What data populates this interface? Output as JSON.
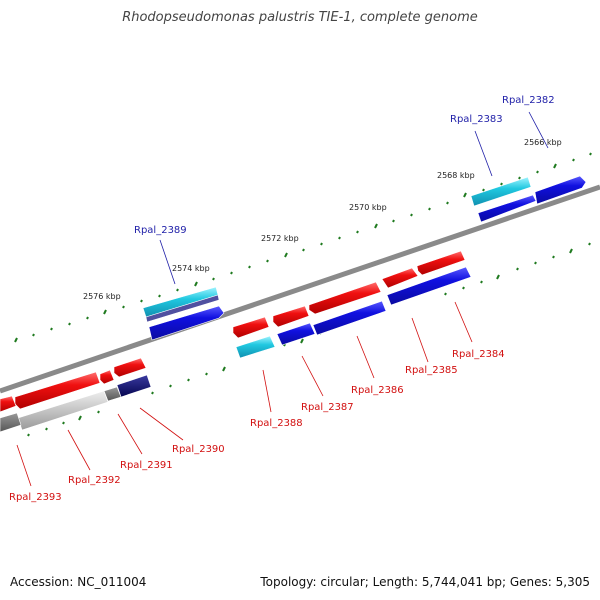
{
  "title": "Rhodopseudomonas palustris TIE-1, complete genome",
  "footer": {
    "accession": "Accession: NC_011004",
    "summary": "Topology: circular; Length: 5,744,041 bp; Genes: 5,305"
  },
  "colors": {
    "backbone": "#8a8a8a",
    "tick": "#1f7a1f",
    "forward_gene": "#1010e0",
    "reverse_gene": "#f01010",
    "cyan_gene": "#20c8e0",
    "dark_gene": "#101070",
    "grey_gene": "#707070"
  },
  "ticks": [
    {
      "label": "2566 kbp"
    },
    {
      "label": "2568 kbp"
    },
    {
      "label": "2570 kbp"
    },
    {
      "label": "2572 kbp"
    },
    {
      "label": "2574 kbp"
    },
    {
      "label": "2576 kbp"
    }
  ],
  "genes": [
    {
      "label": "Rpal_2382",
      "strand": "forward"
    },
    {
      "label": "Rpal_2383",
      "strand": "forward"
    },
    {
      "label": "Rpal_2389",
      "strand": "forward"
    },
    {
      "label": "Rpal_2384",
      "strand": "reverse"
    },
    {
      "label": "Rpal_2385",
      "strand": "reverse"
    },
    {
      "label": "Rpal_2386",
      "strand": "reverse"
    },
    {
      "label": "Rpal_2387",
      "strand": "reverse"
    },
    {
      "label": "Rpal_2388",
      "strand": "reverse"
    },
    {
      "label": "Rpal_2390",
      "strand": "reverse"
    },
    {
      "label": "Rpal_2391",
      "strand": "reverse"
    },
    {
      "label": "Rpal_2392",
      "strand": "reverse"
    },
    {
      "label": "Rpal_2393",
      "strand": "reverse"
    }
  ]
}
